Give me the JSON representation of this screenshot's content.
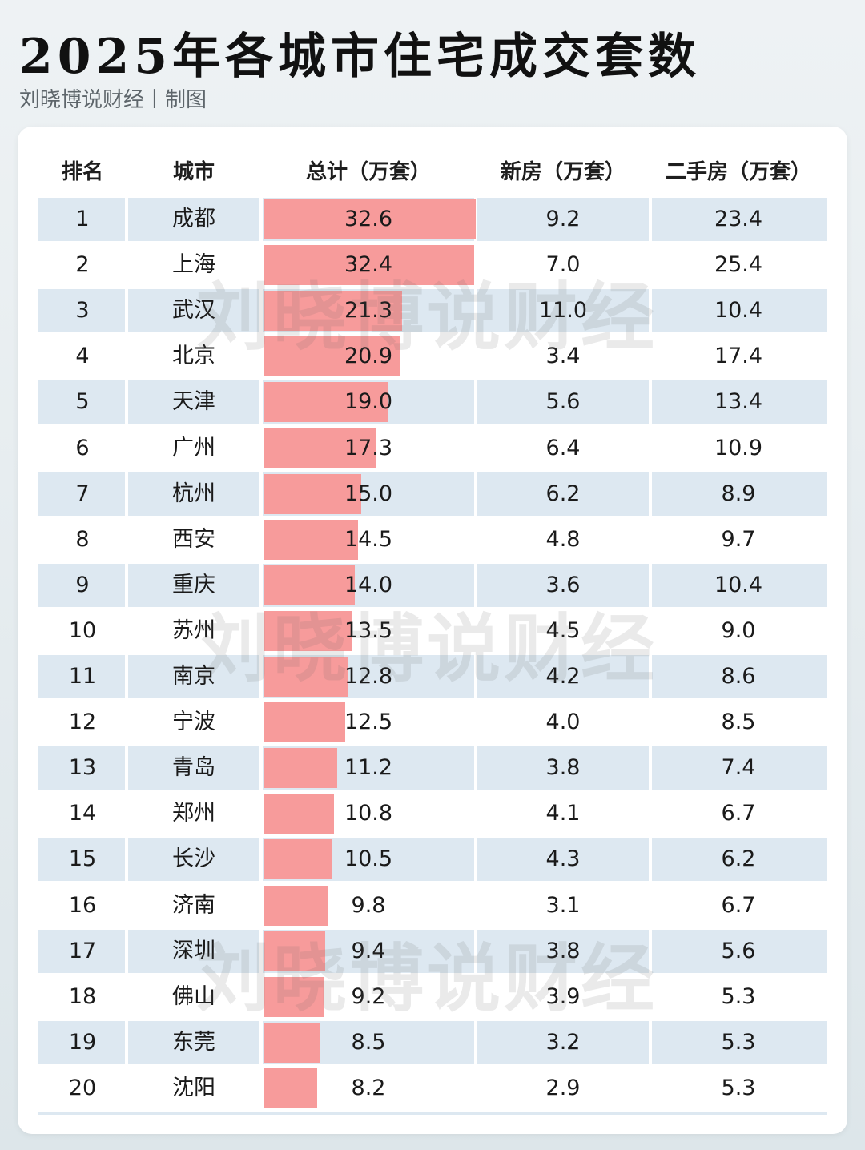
{
  "header": {
    "title": "2025年各城市住宅成交套数",
    "subtitle": "刘晓博说财经丨制图"
  },
  "watermark": "刘晓博说财经",
  "colors": {
    "bar": "#f79b9b",
    "row_shade": "#dde8f1"
  },
  "chart_data": {
    "type": "table",
    "title": "2025年各城市住宅成交套数",
    "columns": [
      "排名",
      "城市",
      "总计（万套）",
      "新房（万套）",
      "二手房（万套）"
    ],
    "bar_column": "总计（万套）",
    "rows": [
      {
        "rank": "1",
        "city": "成都",
        "total": "32.6",
        "new": "9.2",
        "second": "23.4"
      },
      {
        "rank": "2",
        "city": "上海",
        "total": "32.4",
        "new": "7.0",
        "second": "25.4"
      },
      {
        "rank": "3",
        "city": "武汉",
        "total": "21.3",
        "new": "11.0",
        "second": "10.4"
      },
      {
        "rank": "4",
        "city": "北京",
        "total": "20.9",
        "new": "3.4",
        "second": "17.4"
      },
      {
        "rank": "5",
        "city": "天津",
        "total": "19.0",
        "new": "5.6",
        "second": "13.4"
      },
      {
        "rank": "6",
        "city": "广州",
        "total": "17.3",
        "new": "6.4",
        "second": "10.9"
      },
      {
        "rank": "7",
        "city": "杭州",
        "total": "15.0",
        "new": "6.2",
        "second": "8.9"
      },
      {
        "rank": "8",
        "city": "西安",
        "total": "14.5",
        "new": "4.8",
        "second": "9.7"
      },
      {
        "rank": "9",
        "city": "重庆",
        "total": "14.0",
        "new": "3.6",
        "second": "10.4"
      },
      {
        "rank": "10",
        "city": "苏州",
        "total": "13.5",
        "new": "4.5",
        "second": "9.0"
      },
      {
        "rank": "11",
        "city": "南京",
        "total": "12.8",
        "new": "4.2",
        "second": "8.6"
      },
      {
        "rank": "12",
        "city": "宁波",
        "total": "12.5",
        "new": "4.0",
        "second": "8.5"
      },
      {
        "rank": "13",
        "city": "青岛",
        "total": "11.2",
        "new": "3.8",
        "second": "7.4"
      },
      {
        "rank": "14",
        "city": "郑州",
        "total": "10.8",
        "new": "4.1",
        "second": "6.7"
      },
      {
        "rank": "15",
        "city": "长沙",
        "total": "10.5",
        "new": "4.3",
        "second": "6.2"
      },
      {
        "rank": "16",
        "city": "济南",
        "total": "9.8",
        "new": "3.1",
        "second": "6.7"
      },
      {
        "rank": "17",
        "city": "深圳",
        "total": "9.4",
        "new": "3.8",
        "second": "5.6"
      },
      {
        "rank": "18",
        "city": "佛山",
        "total": "9.2",
        "new": "3.9",
        "second": "5.3"
      },
      {
        "rank": "19",
        "city": "东莞",
        "total": "8.5",
        "new": "3.2",
        "second": "5.3"
      },
      {
        "rank": "20",
        "city": "沈阳",
        "total": "8.2",
        "new": "2.9",
        "second": "5.3"
      }
    ]
  }
}
